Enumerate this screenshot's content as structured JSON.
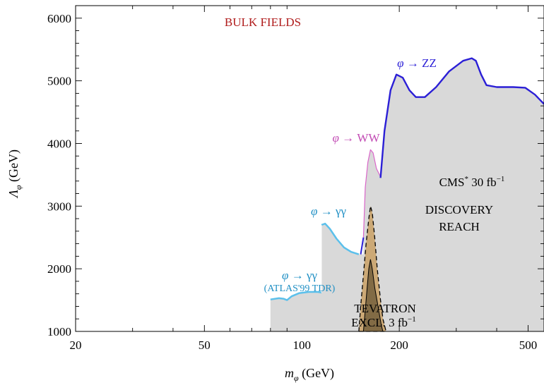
{
  "chart_data": {
    "type": "area",
    "title": "BULK FIELDS",
    "xlabel": "m_φ (GeV)",
    "ylabel": "Λ_φ (GeV)",
    "x_scale": "log",
    "xlim": [
      20,
      560
    ],
    "ylim": [
      1000,
      6200
    ],
    "x_ticks": [
      {
        "value": 20,
        "label": "20"
      },
      {
        "value": 50,
        "label": "50"
      },
      {
        "value": 100,
        "label": "100"
      },
      {
        "value": 200,
        "label": "200"
      },
      {
        "value": 500,
        "label": "500"
      }
    ],
    "y_ticks": [
      {
        "value": 1000,
        "label": "1000"
      },
      {
        "value": 2000,
        "label": "2000"
      },
      {
        "value": 3000,
        "label": "3000"
      },
      {
        "value": 4000,
        "label": "4000"
      },
      {
        "value": 5000,
        "label": "5000"
      },
      {
        "value": 6000,
        "label": "6000"
      }
    ],
    "grid": false,
    "series": [
      {
        "name": "φ → γγ (ATLAS'99 TDR)",
        "color": "#5bc0eb",
        "points": [
          [
            80,
            1510
          ],
          [
            85,
            1530
          ],
          [
            88,
            1520
          ],
          [
            90,
            1500
          ],
          [
            93,
            1560
          ],
          [
            98,
            1610
          ],
          [
            105,
            1630
          ],
          [
            112,
            1630
          ],
          [
            115,
            1620
          ]
        ]
      },
      {
        "name": "φ → γγ",
        "color": "#5bc0eb",
        "points": [
          [
            115,
            2700
          ],
          [
            118,
            2720
          ],
          [
            122,
            2640
          ],
          [
            128,
            2480
          ],
          [
            135,
            2340
          ],
          [
            142,
            2270
          ],
          [
            150,
            2230
          ]
        ]
      },
      {
        "name": "φ → WW",
        "color": "#d966c9",
        "points": [
          [
            155,
            2500
          ],
          [
            157,
            3300
          ],
          [
            160,
            3700
          ],
          [
            163,
            3900
          ],
          [
            166,
            3850
          ],
          [
            170,
            3600
          ],
          [
            175,
            3470
          ]
        ]
      },
      {
        "name": "φ → ZZ",
        "color": "#2b1fd6",
        "points": [
          [
            175,
            3450
          ],
          [
            180,
            4200
          ],
          [
            188,
            4850
          ],
          [
            196,
            5100
          ],
          [
            205,
            5050
          ],
          [
            215,
            4850
          ],
          [
            225,
            4740
          ],
          [
            240,
            4740
          ],
          [
            260,
            4900
          ],
          [
            285,
            5150
          ],
          [
            315,
            5320
          ],
          [
            335,
            5360
          ],
          [
            345,
            5320
          ],
          [
            358,
            5100
          ],
          [
            372,
            4930
          ],
          [
            400,
            4900
          ],
          [
            450,
            4900
          ],
          [
            490,
            4890
          ],
          [
            525,
            4780
          ],
          [
            560,
            4630
          ]
        ]
      },
      {
        "name": "TEVATRON EXCL. 3 fb^-1 (outer)",
        "color": "#c9a064",
        "points": [
          [
            150,
            1000
          ],
          [
            152,
            1400
          ],
          [
            155,
            1900
          ],
          [
            158,
            2400
          ],
          [
            161,
            2800
          ],
          [
            163,
            3000
          ],
          [
            165,
            2900
          ],
          [
            168,
            2500
          ],
          [
            171,
            2000
          ],
          [
            175,
            1500
          ],
          [
            178,
            1200
          ],
          [
            182,
            1000
          ]
        ]
      },
      {
        "name": "TEVATRON EXCL. 3 fb^-1 (inner)",
        "color": "#7a6440",
        "points": [
          [
            155,
            1000
          ],
          [
            158,
            1500
          ],
          [
            161,
            2000
          ],
          [
            163,
            2150
          ],
          [
            165,
            2000
          ],
          [
            168,
            1700
          ],
          [
            172,
            1400
          ],
          [
            176,
            1100
          ],
          [
            178,
            1000
          ]
        ]
      }
    ],
    "annotations": [
      {
        "text": "BULK FIELDS",
        "color": "#b01c1c"
      },
      {
        "text": "φ → ZZ",
        "color": "#2b1fd6"
      },
      {
        "text": "φ → WW",
        "color": "#c24bb4"
      },
      {
        "text": "φ → γγ",
        "color": "#1f8fc4"
      },
      {
        "text": "φ → γγ",
        "color": "#1f8fc4"
      },
      {
        "text": "(ATLAS'99 TDR)",
        "color": "#1f8fc4"
      },
      {
        "text": "CMS* 30 fb^-1",
        "color": "#000000"
      },
      {
        "text": "DISCOVERY",
        "color": "#000000"
      },
      {
        "text": "REACH",
        "color": "#000000"
      },
      {
        "text": "TEVATRON",
        "color": "#000000"
      },
      {
        "text": "EXCL. 3 fb^-1",
        "color": "#000000"
      }
    ]
  }
}
